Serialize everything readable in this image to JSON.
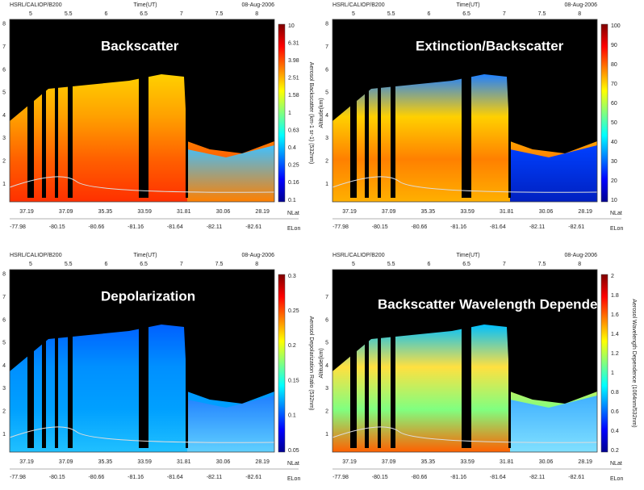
{
  "panels": [
    {
      "header": {
        "left": "HSRL/CALIOP/B200",
        "center": "Time(UT)",
        "right": "08-Aug-2006"
      },
      "title": "Backscatter",
      "time_ticks": [
        "5",
        "5.5",
        "6",
        "6.5",
        "7",
        "7.5",
        "8"
      ],
      "altitude_ticks": [
        "1",
        "2",
        "3",
        "4",
        "5",
        "6",
        "7",
        "8"
      ],
      "colorbar_label": "Aerosol Backscatter (km-1 sr-1) (532nm)",
      "colorbar_ticks": [
        "10",
        "6.31",
        "3.98",
        "2.51",
        "1.58",
        "1",
        "0.63",
        "0.4",
        "0.25",
        "0.16",
        "0.1"
      ],
      "lat_ticks": [
        "37.19",
        "37.09",
        "35.35",
        "33.59",
        "31.81",
        "30.06",
        "28.19"
      ],
      "lat_label": "NLat",
      "lon_ticks": [
        "-77.98",
        "-80.15",
        "-80.66",
        "-81.16",
        "-81.64",
        "-82.11",
        "-82.61"
      ],
      "lon_label": "ELon"
    },
    {
      "header": {
        "left": "HSRL/CALIOP/B200",
        "center": "Time(UT)",
        "right": "08-Aug-2006"
      },
      "title": "Extinction/Backscatter",
      "y_label": "Altitude(km)",
      "time_ticks": [
        "5",
        "5.5",
        "6",
        "6.5",
        "7",
        "7.5",
        "8"
      ],
      "altitude_ticks": [
        "1",
        "2",
        "3",
        "4",
        "5",
        "6",
        "7",
        "8"
      ],
      "colorbar_ticks": [
        "100",
        "90",
        "80",
        "70",
        "60",
        "50",
        "40",
        "30",
        "20",
        "10"
      ],
      "lat_ticks": [
        "37.19",
        "37.09",
        "35.35",
        "33.59",
        "31.81",
        "30.06",
        "28.19"
      ],
      "lat_label": "NLat",
      "lon_ticks": [
        "-77.98",
        "-80.15",
        "-80.66",
        "-81.16",
        "-81.64",
        "-82.11",
        "-82.61"
      ],
      "lon_label": "ELon"
    },
    {
      "header": {
        "left": "HSRL/CALIOP/B200",
        "center": "Time(UT)",
        "right": "08-Aug-2006"
      },
      "title": "Depolarization",
      "time_ticks": [
        "5",
        "5.5",
        "6",
        "6.5",
        "7",
        "7.5",
        "8"
      ],
      "altitude_ticks": [
        "1",
        "2",
        "3",
        "4",
        "5",
        "6",
        "7",
        "8"
      ],
      "colorbar_label": "Aerosol Depolarization Ratio (532nm)",
      "colorbar_ticks": [
        "0.3",
        "0.25",
        "0.2",
        "0.15",
        "0.1",
        "0.05"
      ],
      "lat_ticks": [
        "37.19",
        "37.09",
        "35.35",
        "33.59",
        "31.81",
        "30.06",
        "28.19"
      ],
      "lat_label": "NLat",
      "lon_ticks": [
        "-77.98",
        "-80.15",
        "-80.66",
        "-81.16",
        "-81.64",
        "-82.11",
        "-82.61"
      ],
      "lon_label": "ELon"
    },
    {
      "header": {
        "left": "HSRL/CALIOP/B200",
        "center": "Time(UT)",
        "right": "08-Aug-2006"
      },
      "title": "Backscatter Wavelength Dependence",
      "y_label": "Altitude(km)",
      "time_ticks": [
        "5",
        "5.5",
        "6",
        "6.5",
        "7",
        "7.5",
        "8"
      ],
      "altitude_ticks": [
        "1",
        "2",
        "3",
        "4",
        "5",
        "6",
        "7"
      ],
      "colorbar_label": "Aerosol Wavelength Dependence (1064nm/532nm)",
      "colorbar_ticks": [
        "2",
        "1.8",
        "1.6",
        "1.4",
        "1.2",
        "1",
        "0.8",
        "0.6",
        "0.4",
        "0.2"
      ],
      "lat_ticks": [
        "37.19",
        "37.09",
        "35.35",
        "33.59",
        "31.81",
        "30.06",
        "28.19"
      ],
      "lat_label": "NLat",
      "lon_ticks": [
        "-77.98",
        "-80.15",
        "-80.66",
        "-81.16",
        "-81.64",
        "-82.11",
        "-82.61"
      ],
      "lon_label": "ELon"
    }
  ]
}
